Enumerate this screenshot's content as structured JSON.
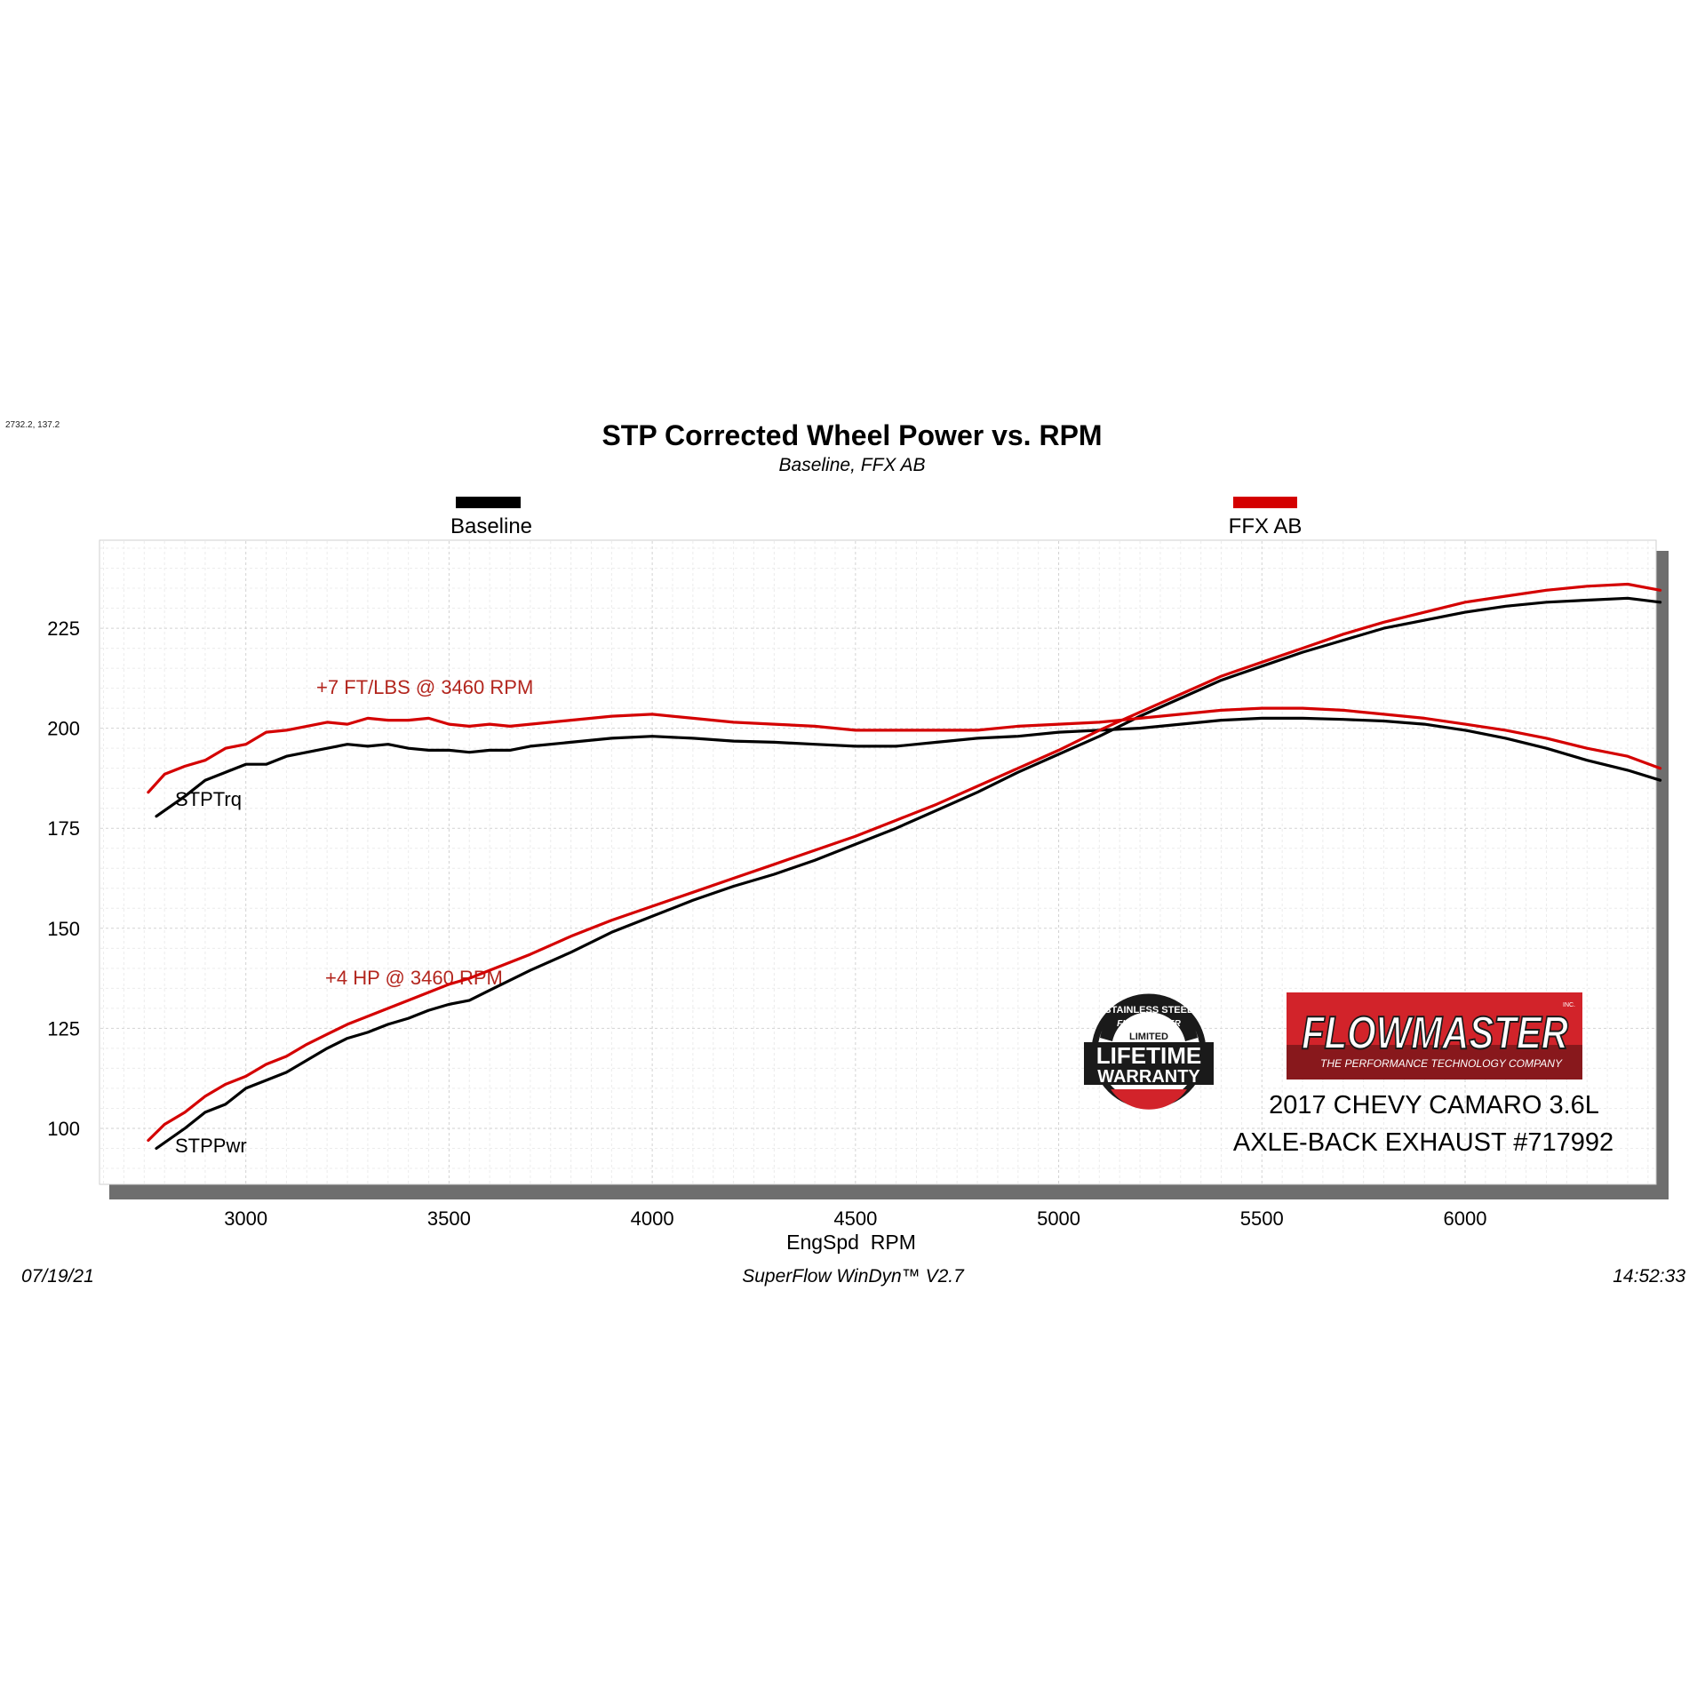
{
  "header": {
    "coord_readout": "2732.2, 137.2",
    "title": "STP Corrected Wheel Power vs. RPM",
    "subtitle": "Baseline, FFX AB"
  },
  "legend": {
    "items": [
      {
        "label": "Baseline",
        "color": "#000000"
      },
      {
        "label": "FFX AB",
        "color": "#d40000"
      }
    ]
  },
  "footer": {
    "date": "07/19/21",
    "software": "SuperFlow WinDyn™ V2.7",
    "time": "14:52:33"
  },
  "annotations": {
    "torque_gain": "+7 FT/LBS @ 3460 RPM",
    "hp_gain": "+4 HP @ 3460 RPM",
    "trq_label": "STPTrq",
    "pwr_label": "STPPwr"
  },
  "branding": {
    "brand": "FLOWMASTER",
    "brand_tag": "THE PERFORMANCE TECHNOLOGY COMPANY",
    "brand_inc": "INC.",
    "brand_color": "#d2232a",
    "warranty_lines": [
      "STAINLESS STEEL",
      "FLOWMASTER",
      "LIMITED",
      "LIFETIME",
      "WARRANTY"
    ],
    "vehicle": "2017 CHEVY CAMARO 3.6L",
    "product": "AXLE-BACK EXHAUST #717992"
  },
  "chart_data": {
    "type": "line",
    "title": "STP Corrected Wheel Power vs. RPM",
    "subtitle": "Baseline, FFX AB",
    "xlabel": "EngSpd  RPM",
    "ylabel": "",
    "xlim": [
      2640,
      6470
    ],
    "ylim": [
      86,
      247
    ],
    "xticks": [
      3000,
      3500,
      4000,
      4500,
      5000,
      5500,
      6000
    ],
    "yticks": [
      100,
      125,
      150,
      175,
      200,
      225
    ],
    "grid": true,
    "legend_position": "top",
    "series": [
      {
        "name": "Baseline",
        "color": "#000000",
        "x": [
          2780,
          2850,
          2900,
          2950,
          3000,
          3050,
          3100,
          3150,
          3200,
          3250,
          3300,
          3350,
          3400,
          3450,
          3500,
          3550,
          3600,
          3650,
          3700,
          3800,
          3900,
          4000,
          4100,
          4200,
          4300,
          4400,
          4500,
          4600,
          4700,
          4800,
          4900,
          5000,
          5100,
          5200,
          5300,
          5400,
          5500,
          5600,
          5700,
          5800,
          5900,
          6000,
          6100,
          6200,
          6300,
          6400,
          6480
        ],
        "y": [
          178,
          183,
          187,
          189,
          191,
          191,
          193,
          194,
          195,
          196,
          195.5,
          196,
          195,
          194.5,
          194.5,
          194,
          194.5,
          194.5,
          195.5,
          196.5,
          197.5,
          198,
          197.5,
          196.8,
          196.5,
          196,
          195.5,
          195.5,
          196.5,
          197.5,
          198,
          199,
          199.5,
          200,
          201,
          202,
          202.5,
          202.5,
          202.2,
          201.8,
          201,
          199.5,
          197.5,
          195,
          192,
          189.5,
          187
        ]
      },
      {
        "name": "Baseline",
        "color": "#000000",
        "x": [
          2780,
          2850,
          2900,
          2950,
          3000,
          3050,
          3100,
          3150,
          3200,
          3250,
          3300,
          3350,
          3400,
          3450,
          3500,
          3550,
          3600,
          3650,
          3700,
          3800,
          3900,
          4000,
          4100,
          4200,
          4300,
          4400,
          4500,
          4600,
          4700,
          4800,
          4900,
          5000,
          5100,
          5200,
          5300,
          5400,
          5500,
          5600,
          5700,
          5800,
          5900,
          6000,
          6100,
          6200,
          6300,
          6400,
          6480
        ],
        "y": [
          95,
          100,
          104,
          106,
          110,
          112,
          114,
          117,
          120,
          122.5,
          124,
          126,
          127.5,
          129.5,
          131,
          132,
          134.5,
          137,
          139.5,
          144,
          149,
          153,
          157,
          160.5,
          163.5,
          167,
          171,
          175,
          179.5,
          184,
          189,
          193.5,
          198,
          203,
          207.5,
          212,
          215.5,
          219,
          222,
          225,
          227,
          229,
          230.5,
          231.5,
          232,
          232.5,
          231.5
        ]
      },
      {
        "name": "FFX AB",
        "color": "#d40000",
        "x": [
          2760,
          2800,
          2850,
          2900,
          2950,
          3000,
          3050,
          3100,
          3150,
          3200,
          3250,
          3300,
          3350,
          3400,
          3450,
          3500,
          3550,
          3600,
          3650,
          3700,
          3800,
          3900,
          4000,
          4100,
          4200,
          4300,
          4400,
          4500,
          4600,
          4700,
          4800,
          4900,
          5000,
          5100,
          5200,
          5300,
          5400,
          5500,
          5600,
          5700,
          5800,
          5900,
          6000,
          6100,
          6200,
          6300,
          6400,
          6480
        ],
        "y": [
          184,
          188.5,
          190.5,
          192,
          195,
          196,
          199,
          199.5,
          200.5,
          201.5,
          201,
          202.5,
          202,
          202,
          202.5,
          201,
          200.5,
          201,
          200.5,
          201,
          202,
          203,
          203.5,
          202.5,
          201.5,
          201,
          200.5,
          199.5,
          199.5,
          199.5,
          199.5,
          200.5,
          201,
          201.5,
          202.5,
          203.5,
          204.5,
          205,
          205,
          204.5,
          203.5,
          202.5,
          201,
          199.5,
          197.5,
          195,
          193,
          190
        ]
      },
      {
        "name": "FFX AB",
        "color": "#d40000",
        "x": [
          2760,
          2800,
          2850,
          2900,
          2950,
          3000,
          3050,
          3100,
          3150,
          3200,
          3250,
          3300,
          3350,
          3400,
          3450,
          3500,
          3550,
          3600,
          3650,
          3700,
          3800,
          3900,
          4000,
          4100,
          4200,
          4300,
          4400,
          4500,
          4600,
          4700,
          4800,
          4900,
          5000,
          5100,
          5200,
          5300,
          5400,
          5500,
          5600,
          5700,
          5800,
          5900,
          6000,
          6100,
          6200,
          6300,
          6400,
          6480
        ],
        "y": [
          97,
          101,
          104,
          108,
          111,
          113,
          116,
          118,
          121,
          123.5,
          126,
          128,
          130,
          132,
          134,
          136,
          137.5,
          139.5,
          141.5,
          143.5,
          148,
          152,
          155.5,
          159,
          162.5,
          166,
          169.5,
          173,
          177,
          181,
          185.5,
          190,
          194.5,
          199.5,
          204,
          208.5,
          213,
          216.5,
          220,
          223.5,
          226.5,
          229,
          231.5,
          233,
          234.5,
          235.5,
          236,
          234.5
        ]
      }
    ]
  }
}
